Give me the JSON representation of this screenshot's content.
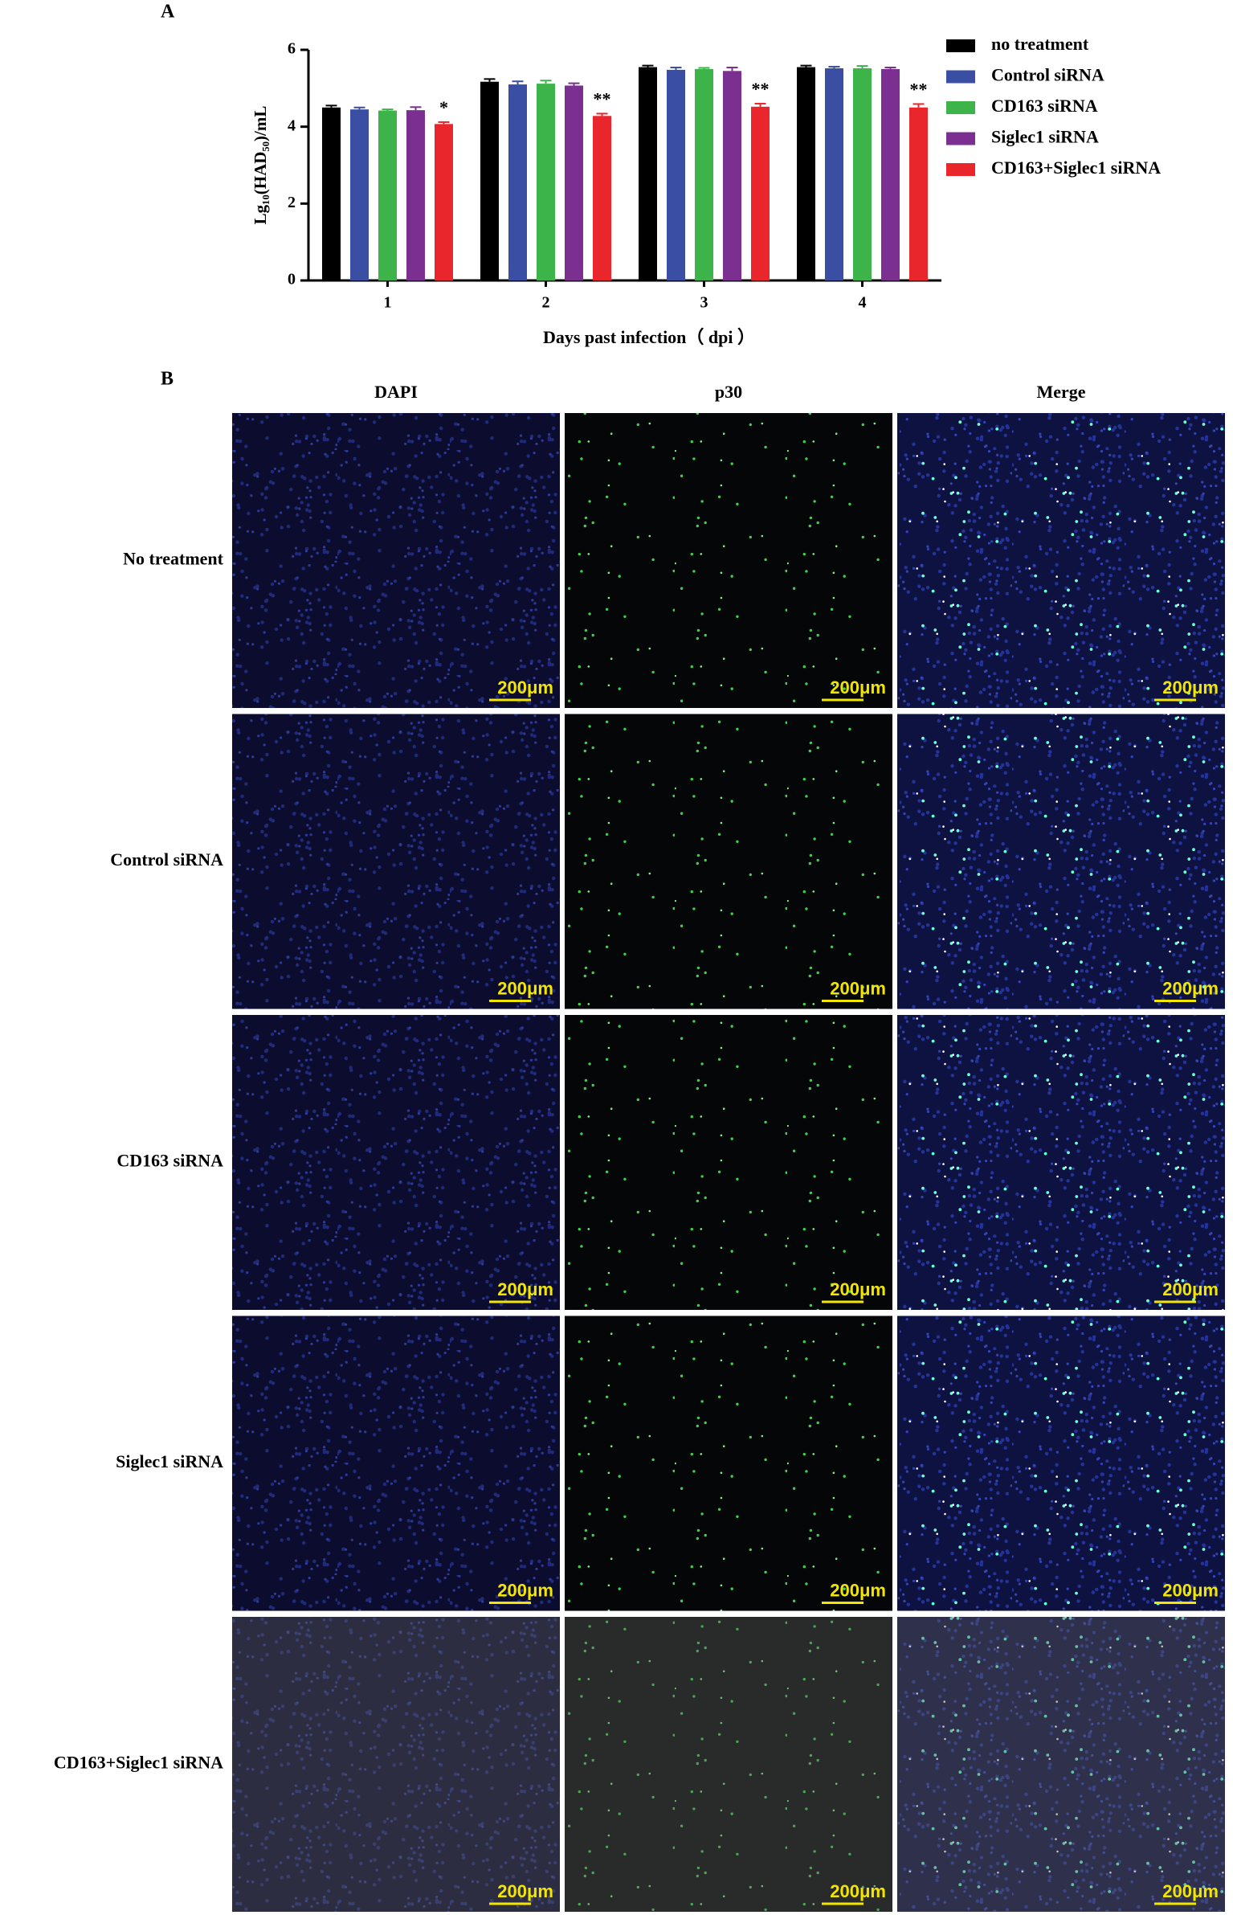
{
  "chart_data": {
    "type": "bar",
    "panel_label": "A",
    "ylabel": "Lg₁₀(HAD₅₀)/mL",
    "xlabel": "Days past infection（ dpi ）",
    "categories": [
      "1",
      "2",
      "3",
      "4"
    ],
    "ylim": [
      0,
      6
    ],
    "yticks": [
      0,
      2,
      4,
      6
    ],
    "series": [
      {
        "name": "no treatment",
        "color": "#000000",
        "values": [
          4.5,
          5.17,
          5.55,
          5.55
        ],
        "errors": [
          0.05,
          0.07,
          0.04,
          0.04
        ]
      },
      {
        "name": "Control siRNA",
        "color": "#3a4fa3",
        "values": [
          4.45,
          5.1,
          5.48,
          5.52
        ],
        "errors": [
          0.05,
          0.08,
          0.06,
          0.04
        ]
      },
      {
        "name": "CD163 siRNA",
        "color": "#3cb44a",
        "values": [
          4.42,
          5.12,
          5.5,
          5.52
        ],
        "errors": [
          0.03,
          0.08,
          0.03,
          0.06
        ]
      },
      {
        "name": "Siglec1 siRNA",
        "color": "#7a2f91",
        "values": [
          4.43,
          5.07,
          5.45,
          5.5
        ],
        "errors": [
          0.08,
          0.06,
          0.09,
          0.04
        ]
      },
      {
        "name": "CD163+Siglec1 siRNA",
        "color": "#e8262b",
        "values": [
          4.07,
          4.28,
          4.52,
          4.5
        ],
        "errors": [
          0.05,
          0.06,
          0.08,
          0.09
        ],
        "significance": [
          "*",
          "**",
          "**",
          "**"
        ]
      }
    ]
  },
  "panel_b": {
    "label": "B",
    "columns": [
      "DAPI",
      "p30",
      "Merge"
    ],
    "rows": [
      "No treatment",
      "Control siRNA",
      "CD163 siRNA",
      "Siglec1 siRNA",
      "CD163+Siglec1 siRNA"
    ],
    "scale_bar": "200μm"
  }
}
